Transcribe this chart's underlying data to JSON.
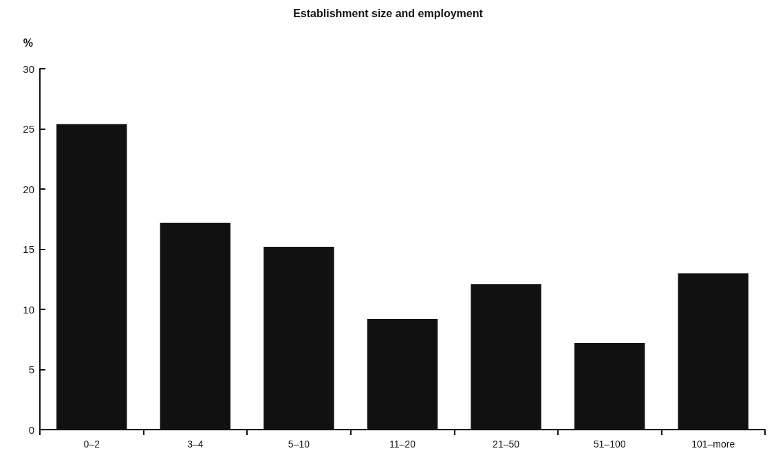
{
  "chart_data": {
    "type": "bar",
    "title": "Establishment size and employment",
    "ylabel": "%",
    "categories": [
      "0–2",
      "3–4",
      "5–10",
      "11–20",
      "21–50",
      "51–100",
      "101–more"
    ],
    "values": [
      25.4,
      17.2,
      15.2,
      9.2,
      12.1,
      7.2,
      13.0
    ],
    "color": "#111111",
    "ylim": [
      0,
      30
    ],
    "yticks": [
      0,
      5,
      10,
      15,
      20,
      25,
      30
    ],
    "grid": false
  }
}
